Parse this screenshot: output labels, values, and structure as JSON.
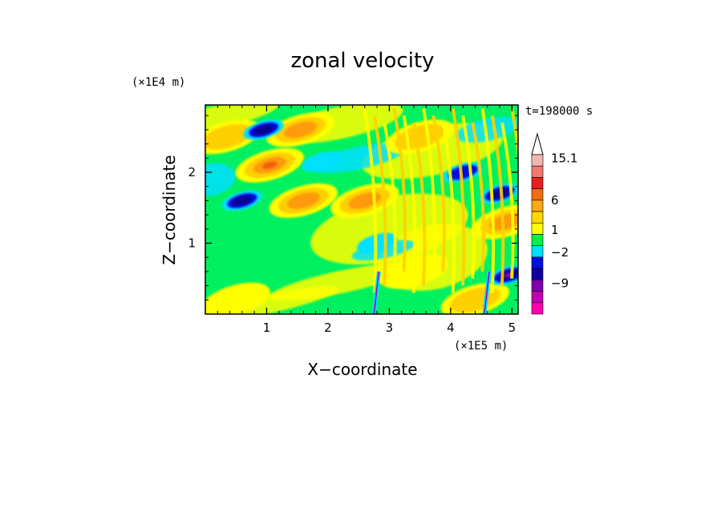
{
  "chart_data": {
    "type": "heatmap",
    "title": "zonal velocity",
    "xlabel": "X−coordinate",
    "ylabel": "Z−coordinate",
    "x_unit": "(×1E5 m)",
    "y_unit": "(×1E4 m)",
    "time_label": "t=198000 s",
    "xlim": [
      0,
      5.1
    ],
    "ylim": [
      0,
      2.95
    ],
    "x_ticks": [
      "1",
      "2",
      "3",
      "4",
      "5"
    ],
    "x_tick_values": [
      1,
      2,
      3,
      4,
      5
    ],
    "y_ticks": [
      "1",
      "2"
    ],
    "y_tick_values": [
      1,
      2
    ],
    "colorbar": {
      "tick_labels": [
        "15.1",
        "6",
        "1",
        "−2",
        "−9"
      ],
      "tick_values": [
        15.1,
        6,
        1,
        -2,
        -9
      ],
      "colors_top_to_bottom": [
        "#f4b6b4",
        "#f07a70",
        "#e82020",
        "#f06e10",
        "#f8a818",
        "#ffd800",
        "#ffff00",
        "#00f050",
        "#00e0ff",
        "#0010e0",
        "#1000a0",
        "#8000b0",
        "#c000b0",
        "#ff00b0"
      ],
      "extend": "max"
    },
    "field_colors": {
      "background": "#00f060",
      "weak_positive": "#ffff00",
      "moderate_positive": "#ffd000",
      "strong_positive": "#ff9a10",
      "very_strong_positive": "#f06010",
      "weak_negative": "#00e0ff",
      "strong_negative": "#0010e0",
      "very_strong_negative": "#100090",
      "sharp_feature": "#a000b0"
    },
    "features": [
      {
        "kind": "positive",
        "x": 1.05,
        "z": 2.1,
        "level": 4
      },
      {
        "kind": "positive",
        "x": 1.6,
        "z": 1.6,
        "level": 3
      },
      {
        "kind": "positive",
        "x": 1.55,
        "z": 2.6,
        "level": 3
      },
      {
        "kind": "positive",
        "x": 0.35,
        "z": 2.5,
        "level": 2
      },
      {
        "kind": "positive",
        "x": 2.6,
        "z": 1.6,
        "level": 3
      },
      {
        "kind": "positive",
        "x": 4.9,
        "z": 1.3,
        "level": 3
      },
      {
        "kind": "positive",
        "x": 3.5,
        "z": 2.5,
        "level": 2
      },
      {
        "kind": "positive",
        "x": 3.4,
        "z": 0.6,
        "level": 1
      },
      {
        "kind": "positive",
        "x": 4.4,
        "z": 0.2,
        "level": 2
      },
      {
        "kind": "positive",
        "x": 0.5,
        "z": 0.2,
        "level": 1
      },
      {
        "kind": "negative",
        "x": 0.95,
        "z": 2.6,
        "level": 3
      },
      {
        "kind": "negative",
        "x": 0.6,
        "z": 1.6,
        "level": 3
      },
      {
        "kind": "negative",
        "x": 4.95,
        "z": 0.55,
        "level": 4
      },
      {
        "kind": "negative",
        "x": 4.8,
        "z": 1.7,
        "level": 3
      },
      {
        "kind": "negative",
        "x": 1.9,
        "z": 2.15,
        "level": 1
      },
      {
        "kind": "negative",
        "x": 4.2,
        "z": 2.0,
        "level": 2
      },
      {
        "kind": "negative",
        "x": 2.8,
        "z": 1.0,
        "level": 1
      }
    ]
  }
}
